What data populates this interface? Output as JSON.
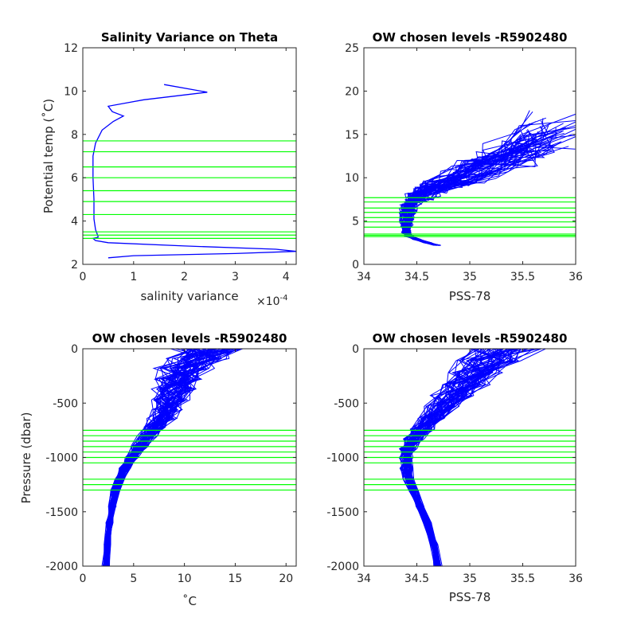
{
  "chart_data": [
    {
      "type": "line",
      "title": "Salinity Variance on Theta",
      "xlabel": "salinity variance",
      "xlabel_exponent": "×10",
      "xlabel_exponent_power": "-4",
      "ylabel": "Potential temp (˚C)",
      "xlim": [
        0,
        4.2
      ],
      "ylim": [
        2,
        12
      ],
      "xticks": [
        "0",
        "1",
        "2",
        "3",
        "4"
      ],
      "yticks": [
        "2",
        "4",
        "6",
        "8",
        "10",
        "12"
      ],
      "grid": false,
      "colors": {
        "line": "#0000ff",
        "levels": "#00ff00"
      },
      "variance_scale": "1e-4",
      "series": [
        {
          "x": [
            1.6,
            2.45,
            1.2,
            0.5,
            0.58,
            0.8,
            0.6,
            0.38,
            0.25,
            0.2,
            0.2,
            0.22,
            0.22,
            0.22,
            0.25,
            0.3,
            0.3,
            0.2,
            0.25,
            0.5,
            2.0,
            3.8,
            4.2,
            3.0,
            1.0,
            0.5
          ],
          "y": [
            10.3,
            9.95,
            9.6,
            9.3,
            9.05,
            8.85,
            8.6,
            8.2,
            7.6,
            7.0,
            6.0,
            5.0,
            4.4,
            4.1,
            3.6,
            3.3,
            3.25,
            3.2,
            3.1,
            3.0,
            2.85,
            2.7,
            2.6,
            2.5,
            2.4,
            2.3
          ]
        }
      ],
      "level_lines": {
        "axis": "y",
        "values": [
          3.2,
          3.35,
          3.5,
          4.3,
          4.9,
          5.4,
          6.0,
          6.5,
          7.2,
          7.7
        ]
      }
    },
    {
      "type": "line",
      "title": "OW chosen levels -R5902480",
      "xlabel": "PSS-78",
      "ylabel": "",
      "xlim": [
        34,
        36
      ],
      "ylim": [
        0,
        25
      ],
      "xticks": [
        "34",
        "34.5",
        "35",
        "35.5",
        "36"
      ],
      "yticks": [
        "0",
        "5",
        "10",
        "15",
        "20",
        "25"
      ],
      "grid": false,
      "colors": {
        "line": "#0000ff",
        "levels": "#00ff00"
      },
      "profile_count": 60,
      "series": [
        {
          "name": "",
          "x": [
            34.7,
            34.6,
            34.5,
            34.42,
            34.4,
            34.4,
            34.41,
            34.42,
            34.44,
            34.48,
            34.55,
            34.65,
            34.8,
            35.0,
            35.25,
            35.5,
            35.75
          ],
          "y": [
            2.2,
            2.5,
            2.9,
            3.3,
            3.8,
            4.5,
            5.2,
            6.0,
            6.7,
            7.4,
            8.1,
            8.8,
            9.5,
            10.6,
            11.8,
            13.3,
            15.2
          ]
        }
      ],
      "level_lines": {
        "axis": "y",
        "values": [
          3.2,
          3.35,
          3.5,
          4.3,
          4.9,
          5.4,
          6.0,
          6.5,
          7.2,
          7.7
        ]
      }
    },
    {
      "type": "line",
      "title": "OW chosen levels -R5902480",
      "xlabel": "˚C",
      "ylabel": "Pressure (dbar)",
      "xlim": [
        0,
        21
      ],
      "ylim": [
        -2000,
        0
      ],
      "xticks": [
        "0",
        "5",
        "10",
        "15",
        "20"
      ],
      "yticks": [
        "-2000",
        "-1500",
        "-1000",
        "-500",
        "0"
      ],
      "grid": false,
      "colors": {
        "line": "#0000ff",
        "levels": "#00ff00"
      },
      "profile_count": 60,
      "series": [
        {
          "name": "",
          "x": [
            2.3,
            2.4,
            2.6,
            2.9,
            3.2,
            3.6,
            4.1,
            4.8,
            5.6,
            6.4,
            7.1,
            7.8,
            8.3,
            8.6,
            9.0,
            9.5,
            10.2,
            11.2,
            12.5
          ],
          "y": [
            -2000,
            -1800,
            -1600,
            -1450,
            -1300,
            -1200,
            -1100,
            -1000,
            -900,
            -800,
            -720,
            -640,
            -560,
            -470,
            -370,
            -280,
            -180,
            -90,
            0
          ]
        }
      ],
      "level_lines": {
        "axis": "y",
        "values": [
          -750,
          -800,
          -850,
          -900,
          -950,
          -1000,
          -1050,
          -1200,
          -1250,
          -1300
        ]
      }
    },
    {
      "type": "line",
      "title": "OW chosen levels -R5902480",
      "xlabel": "PSS-78",
      "ylabel": "",
      "xlim": [
        34,
        36
      ],
      "ylim": [
        -2000,
        0
      ],
      "xticks": [
        "34",
        "34.5",
        "35",
        "35.5",
        "36"
      ],
      "yticks": [
        "-2000",
        "-1500",
        "-1000",
        "-500",
        "0"
      ],
      "grid": false,
      "colors": {
        "line": "#0000ff",
        "levels": "#00ff00"
      },
      "profile_count": 60,
      "series": [
        {
          "name": "",
          "x": [
            34.7,
            34.66,
            34.6,
            34.53,
            34.47,
            34.42,
            34.4,
            34.4,
            34.42,
            34.47,
            34.55,
            34.65,
            34.75,
            34.85,
            34.95,
            35.05,
            35.18,
            35.35
          ],
          "y": [
            -2000,
            -1800,
            -1600,
            -1450,
            -1300,
            -1200,
            -1100,
            -1000,
            -920,
            -830,
            -740,
            -640,
            -530,
            -430,
            -330,
            -220,
            -110,
            0
          ]
        }
      ],
      "level_lines": {
        "axis": "y",
        "values": [
          -750,
          -800,
          -850,
          -900,
          -950,
          -1000,
          -1050,
          -1200,
          -1250,
          -1300
        ]
      }
    }
  ]
}
